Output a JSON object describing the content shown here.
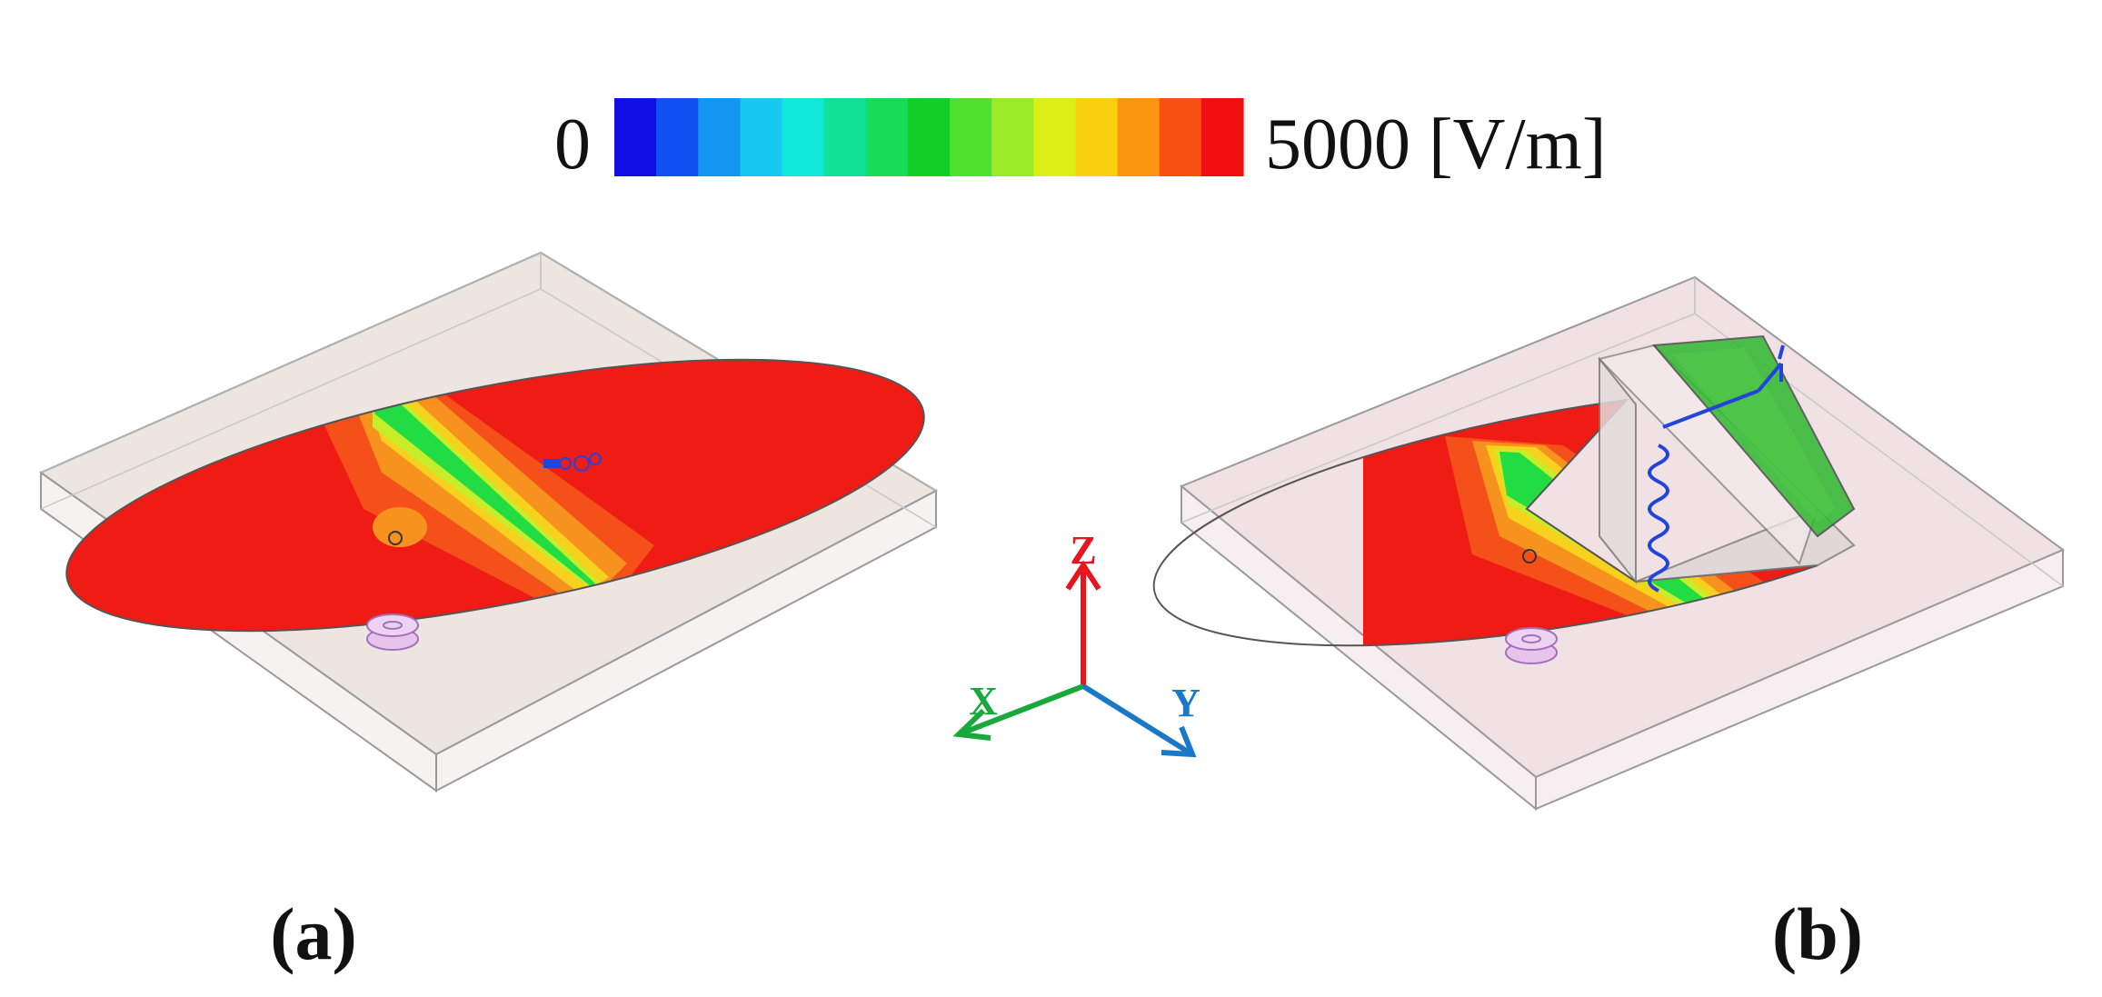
{
  "colorbar": {
    "min_label": "0",
    "max_label": "5000 [V/m]",
    "colors": [
      "#1010e6",
      "#1050f0",
      "#1496f0",
      "#18c8f0",
      "#10e8d8",
      "#12e096",
      "#16dc58",
      "#12d028",
      "#52e030",
      "#9aea28",
      "#dcf018",
      "#f8d010",
      "#fc9610",
      "#f85010",
      "#f01010"
    ]
  },
  "axes": {
    "z_label": "Z",
    "x_label": "X",
    "y_label": "Y",
    "z_color": "#e8141e",
    "x_color": "#18a83c",
    "y_color": "#1a78c8"
  },
  "panels": {
    "a_label": "(a)",
    "b_label": "(b)"
  },
  "field_colors": {
    "red": "#ee1c14",
    "orange_red": "#f5501a",
    "orange": "#f8921e",
    "yellow": "#f6d21e",
    "yellow_green": "#c6ec2a",
    "green": "#22dc44",
    "panel_green": "#2eb82e",
    "substrate_a": "#ede5e0",
    "substrate_b": "#f0e1e4",
    "feed_purple": "#d898e0",
    "probe_blue": "#2244dd"
  }
}
